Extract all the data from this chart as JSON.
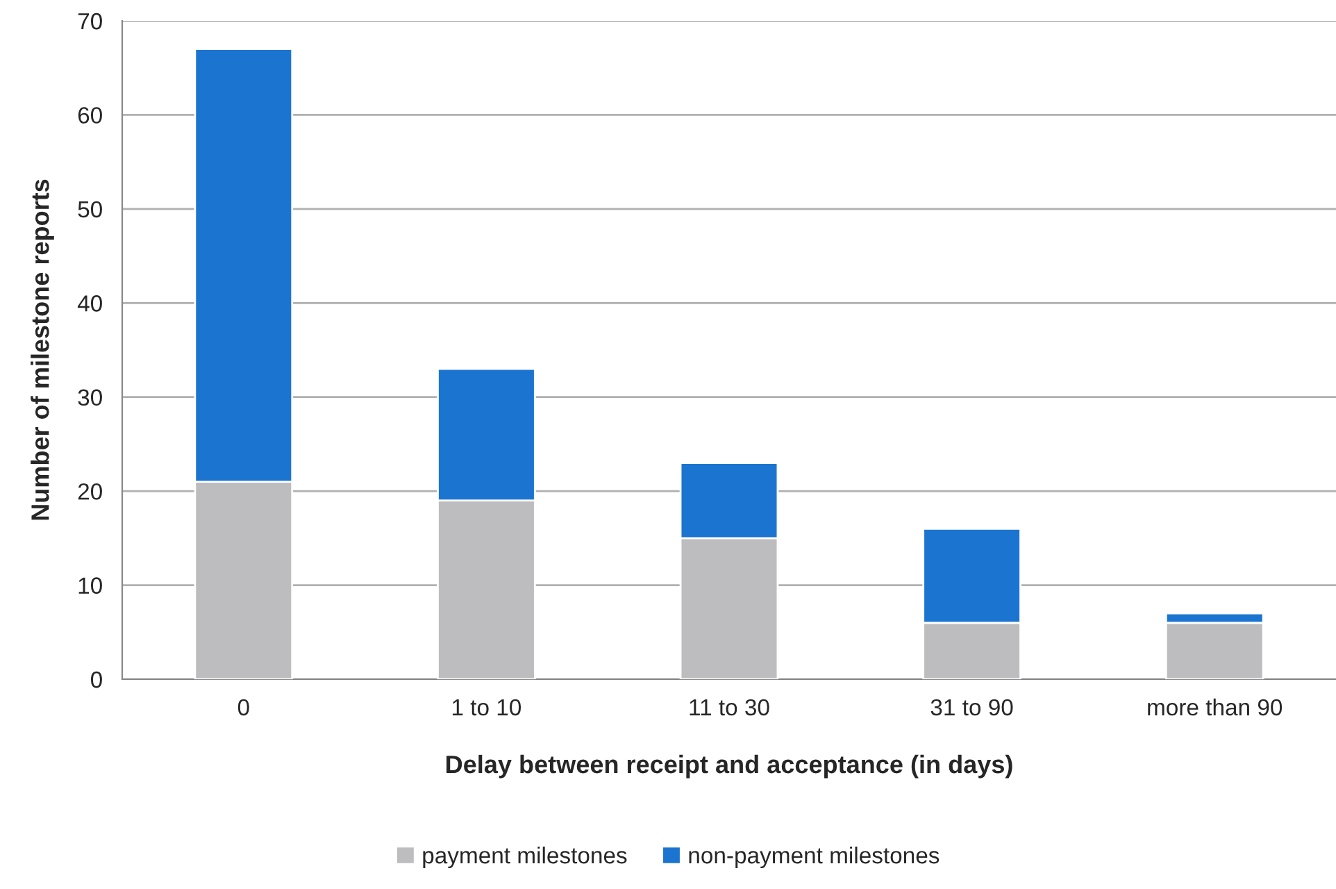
{
  "chart_data": {
    "type": "bar",
    "stacked": true,
    "xlabel": "Delay between receipt and acceptance (in days)",
    "ylabel": "Number of milestone reports",
    "categories": [
      "0",
      "1 to 10",
      "11 to 30",
      "31 to 90",
      "more than 90"
    ],
    "series": [
      {
        "name": "payment milestones",
        "color": "#bdbdbf",
        "values": [
          21,
          19,
          15,
          6,
          6
        ]
      },
      {
        "name": "non-payment milestones",
        "color": "#1b75d0",
        "values": [
          46,
          14,
          8,
          10,
          1
        ]
      }
    ],
    "ylim": [
      0,
      70
    ],
    "yticks": [
      0,
      10,
      20,
      30,
      40,
      50,
      60,
      70
    ],
    "grid": "y",
    "legend": "bottom"
  }
}
